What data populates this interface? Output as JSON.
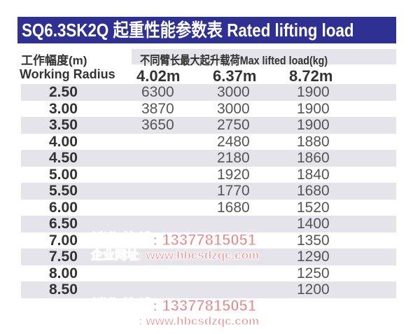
{
  "title": "SQ6.3SK2Q 起重性能参数表 Rated lifting load",
  "header": {
    "radius_cn": "工作幅度(m)",
    "radius_en": "Working Radius",
    "load_label": "不同臂长最大起升载荷Max lifted load(kg)",
    "arm_lengths": [
      "4.02m",
      "6.37m",
      "8.72m"
    ]
  },
  "rows": [
    {
      "r": "2.50",
      "v": [
        "6300",
        "3000",
        "1900"
      ]
    },
    {
      "r": "3.00",
      "v": [
        "3870",
        "3000",
        "1900"
      ]
    },
    {
      "r": "3.50",
      "v": [
        "3650",
        "2750",
        "1900"
      ]
    },
    {
      "r": "4.00",
      "v": [
        "",
        "2480",
        "1880"
      ]
    },
    {
      "r": "4.50",
      "v": [
        "",
        "2180",
        "1860"
      ]
    },
    {
      "r": "5.00",
      "v": [
        "",
        "1920",
        "1840"
      ]
    },
    {
      "r": "5.50",
      "v": [
        "",
        "1770",
        "1680"
      ]
    },
    {
      "r": "6.00",
      "v": [
        "",
        "1680",
        "1520"
      ]
    },
    {
      "r": "6.50",
      "v": [
        "",
        "",
        "1400"
      ]
    },
    {
      "r": "7.00",
      "v": [
        "",
        "",
        "1350"
      ]
    },
    {
      "r": "7.50",
      "v": [
        "",
        "",
        "1290"
      ]
    },
    {
      "r": "8.00",
      "v": [
        "",
        "",
        "1250"
      ]
    },
    {
      "r": "8.50",
      "v": [
        "",
        "",
        "1200"
      ]
    }
  ],
  "watermark": {
    "phone": "销售热线: 13377815051",
    "site": "企业网址: www.hbcsdzqc.com"
  },
  "colors": {
    "title_bg": "#2e3192",
    "row_shade": "#e5e4ea",
    "watermark": "#f08080"
  }
}
